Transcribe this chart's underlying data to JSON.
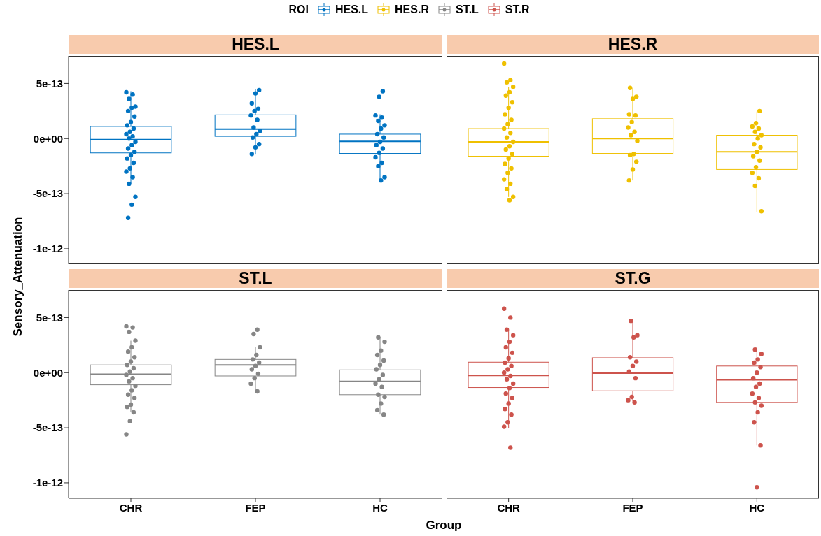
{
  "chart_data": [
    {
      "type": "box",
      "title": "HES.L",
      "legend": "top",
      "legend_title": "ROI",
      "ylabel": "Sensory_Attenuation",
      "categories": [
        "CHR",
        "FEP",
        "HC"
      ],
      "ylim": [
        -1.14e-12,
        7.5e-13
      ],
      "yticks": [
        {
          "value": 5e-13,
          "label": "5e-13"
        },
        {
          "value": 0,
          "label": "0e+00"
        },
        {
          "value": -5e-13,
          "label": "-5e-13"
        },
        {
          "value": -1e-12,
          "label": "-1e-12"
        }
      ],
      "tick_labels": "y",
      "series": [
        {
          "name": "HES.L",
          "color": "#0073c2",
          "boxes": [
            {
              "low": -4.1e-13,
              "q1": -1.3e-13,
              "median": -1e-14,
              "q3": 1.1e-13,
              "high": 4.3e-13
            },
            {
              "low": -1.45e-13,
              "q1": 2e-14,
              "median": 8.5e-14,
              "q3": 2.15e-13,
              "high": 4.5e-13
            },
            {
              "low": -3.8e-13,
              "q1": -1.35e-13,
              "median": -2.5e-14,
              "q3": 4e-14,
              "high": 2.2e-13
            }
          ]
        },
        {
          "type": "scatter",
          "color": "#0073c2",
          "x": [
            "CHR",
            "CHR",
            "CHR",
            "CHR",
            "CHR",
            "CHR",
            "CHR",
            "CHR",
            "CHR",
            "CHR",
            "CHR",
            "CHR",
            "CHR",
            "CHR",
            "CHR",
            "CHR",
            "CHR",
            "CHR",
            "CHR",
            "CHR",
            "CHR",
            "CHR",
            "CHR",
            "CHR",
            "CHR",
            "CHR",
            "CHR",
            "CHR",
            "FEP",
            "FEP",
            "FEP",
            "FEP",
            "FEP",
            "FEP",
            "FEP",
            "FEP",
            "FEP",
            "FEP",
            "FEP",
            "FEP",
            "FEP",
            "FEP",
            "HC",
            "HC",
            "HC",
            "HC",
            "HC",
            "HC",
            "HC",
            "HC",
            "HC",
            "HC",
            "HC",
            "HC",
            "HC",
            "HC",
            "HC",
            "HC",
            "HC",
            "HC"
          ],
          "values": [
            4.2e-13,
            4e-13,
            3.6e-13,
            2.9e-13,
            2.8e-13,
            2.5e-13,
            2e-13,
            1.5e-13,
            1.2e-13,
            9e-14,
            6e-14,
            4e-14,
            2e-14,
            0,
            -3e-14,
            -6e-14,
            -9e-14,
            -1.2e-13,
            -1.5e-13,
            -1.8e-13,
            -2.2e-13,
            -2.7e-13,
            -3e-13,
            -3.5e-13,
            -4.1e-13,
            -5.3e-13,
            -6e-13,
            -7.2e-13,
            4.4e-13,
            4.1e-13,
            3.2e-13,
            2.7e-13,
            2.5e-13,
            2.1e-13,
            1.7e-13,
            1e-13,
            7e-14,
            4e-14,
            1e-14,
            -5e-14,
            -8e-14,
            -1.4e-13,
            4.3e-13,
            3.8e-13,
            2.1e-13,
            1.9e-13,
            1.6e-13,
            1.2e-13,
            9e-14,
            4e-14,
            1e-14,
            -3e-14,
            -6e-14,
            -9e-14,
            -1.3e-13,
            -1.7e-13,
            -2.2e-13,
            -2.5e-13,
            -3.5e-13,
            -3.8e-13
          ]
        }
      ]
    },
    {
      "type": "box",
      "title": "HES.R",
      "categories": [
        "CHR",
        "FEP",
        "HC"
      ],
      "ylim": [
        -1.14e-12,
        7.5e-13
      ],
      "tick_labels": false,
      "series": [
        {
          "name": "HES.R",
          "color": "#efc000",
          "boxes": [
            {
              "low": -5.3e-13,
              "q1": -1.6e-13,
              "median": -3e-14,
              "q3": 9e-14,
              "high": 4.65e-13
            },
            {
              "low": -3.8e-13,
              "q1": -1.35e-13,
              "median": 0,
              "q3": 1.8e-13,
              "high": 4.6e-13
            },
            {
              "low": -6.7e-13,
              "q1": -2.8e-13,
              "median": -1.2e-13,
              "q3": 3e-14,
              "high": 2.45e-13
            }
          ]
        },
        {
          "type": "scatter",
          "color": "#efc000",
          "x": [
            "CHR",
            "CHR",
            "CHR",
            "CHR",
            "CHR",
            "CHR",
            "CHR",
            "CHR",
            "CHR",
            "CHR",
            "CHR",
            "CHR",
            "CHR",
            "CHR",
            "CHR",
            "CHR",
            "CHR",
            "CHR",
            "CHR",
            "CHR",
            "CHR",
            "CHR",
            "CHR",
            "CHR",
            "CHR",
            "CHR",
            "CHR",
            "FEP",
            "FEP",
            "FEP",
            "FEP",
            "FEP",
            "FEP",
            "FEP",
            "FEP",
            "FEP",
            "FEP",
            "FEP",
            "FEP",
            "FEP",
            "FEP",
            "FEP",
            "HC",
            "HC",
            "HC",
            "HC",
            "HC",
            "HC",
            "HC",
            "HC",
            "HC",
            "HC",
            "HC",
            "HC",
            "HC",
            "HC",
            "HC",
            "HC",
            "HC"
          ],
          "values": [
            6.8e-13,
            5.3e-13,
            5.1e-13,
            4.7e-13,
            4.2e-13,
            3.9e-13,
            3.3e-13,
            2.8e-13,
            2.2e-13,
            1.7e-13,
            1.3e-13,
            9e-14,
            5e-14,
            1e-14,
            -3e-14,
            -7e-14,
            -1e-13,
            -1.4e-13,
            -1.8e-13,
            -2.3e-13,
            -2.7e-13,
            -3.1e-13,
            -3.7e-13,
            -4.1e-13,
            -4.6e-13,
            -5.3e-13,
            -5.6e-13,
            4.6e-13,
            3.8e-13,
            3.6e-13,
            2.2e-13,
            2.1e-13,
            1.5e-13,
            1e-13,
            6e-14,
            3e-14,
            -2e-14,
            -1.4e-13,
            -1.5e-13,
            -2.1e-13,
            -2.8e-13,
            -3.8e-13,
            2.5e-13,
            1.4e-13,
            1.1e-13,
            9e-14,
            6e-14,
            3e-14,
            0,
            -5e-14,
            -8e-14,
            -1.2e-13,
            -1.6e-13,
            -2e-13,
            -2.6e-13,
            -3.1e-13,
            -3.6e-13,
            -4.3e-13,
            -6.6e-13
          ]
        }
      ]
    },
    {
      "type": "box",
      "title": "ST.L",
      "xlabel": "Group",
      "categories": [
        "CHR",
        "FEP",
        "HC"
      ],
      "ylim": [
        -1.14e-12,
        7.5e-13
      ],
      "yticks": [
        {
          "value": 5e-13,
          "label": "5e-13"
        },
        {
          "value": 0,
          "label": "0e+00"
        },
        {
          "value": -5e-13,
          "label": "-5e-13"
        },
        {
          "value": -1e-12,
          "label": "-1e-12"
        }
      ],
      "series": [
        {
          "name": "ST.L",
          "color": "#868686",
          "boxes": [
            {
              "low": -3.6e-13,
              "q1": -1.1e-13,
              "median": -1.5e-14,
              "q3": 7e-14,
              "high": 2.9e-13
            },
            {
              "low": -1.8e-13,
              "q1": -3e-14,
              "median": 7e-14,
              "q3": 1.2e-13,
              "high": 2.3e-13
            },
            {
              "low": -3.8e-13,
              "q1": -2e-13,
              "median": -8e-14,
              "q3": 2.5e-14,
              "high": 3.25e-13
            }
          ]
        },
        {
          "type": "scatter",
          "color": "#868686",
          "x": [
            "CHR",
            "CHR",
            "CHR",
            "CHR",
            "CHR",
            "CHR",
            "CHR",
            "CHR",
            "CHR",
            "CHR",
            "CHR",
            "CHR",
            "CHR",
            "CHR",
            "CHR",
            "CHR",
            "CHR",
            "CHR",
            "CHR",
            "CHR",
            "CHR",
            "CHR",
            "CHR",
            "FEP",
            "FEP",
            "FEP",
            "FEP",
            "FEP",
            "FEP",
            "FEP",
            "FEP",
            "FEP",
            "FEP",
            "FEP",
            "FEP",
            "HC",
            "HC",
            "HC",
            "HC",
            "HC",
            "HC",
            "HC",
            "HC",
            "HC",
            "HC",
            "HC",
            "HC",
            "HC",
            "HC",
            "HC",
            "HC"
          ],
          "values": [
            4.2e-13,
            4.1e-13,
            3.7e-13,
            2.9e-13,
            2.3e-13,
            1.9e-13,
            1.4e-13,
            1e-13,
            7e-14,
            4e-14,
            1e-14,
            -2e-14,
            -5e-14,
            -8e-14,
            -1.2e-13,
            -1.6e-13,
            -2e-13,
            -2.3e-13,
            -2.9e-13,
            -3.1e-13,
            -3.6e-13,
            -4.4e-13,
            -5.6e-13,
            3.9e-13,
            3.5e-13,
            2.3e-13,
            1.6e-13,
            1.2e-13,
            9e-14,
            6e-14,
            3e-14,
            -1e-14,
            -5e-14,
            -1e-13,
            -1.7e-13,
            3.2e-13,
            2.8e-13,
            2e-13,
            1.6e-13,
            1.1e-13,
            7e-14,
            3e-14,
            -2e-14,
            -6e-14,
            -1e-13,
            -1.3e-13,
            -2e-13,
            -2.2e-13,
            -2.8e-13,
            -3.4e-13,
            -3.8e-13
          ]
        }
      ]
    },
    {
      "type": "box",
      "title": "ST.G",
      "categories": [
        "CHR",
        "FEP",
        "HC"
      ],
      "ylim": [
        -1.14e-12,
        7.5e-13
      ],
      "tick_labels": "x",
      "series": [
        {
          "name": "ST.R",
          "color": "#cd534c",
          "boxes": [
            {
              "low": -5e-13,
              "q1": -1.35e-13,
              "median": -2.5e-14,
              "q3": 9.5e-14,
              "high": 3.9e-13
            },
            {
              "low": -2.6e-13,
              "q1": -1.65e-13,
              "median": -5e-15,
              "q3": 1.35e-13,
              "high": 4.8e-13
            },
            {
              "low": -6.6e-13,
              "q1": -2.7e-13,
              "median": -6.5e-14,
              "q3": 6e-14,
              "high": 2.3e-13
            }
          ]
        },
        {
          "type": "scatter",
          "color": "#cd534c",
          "x": [
            "CHR",
            "CHR",
            "CHR",
            "CHR",
            "CHR",
            "CHR",
            "CHR",
            "CHR",
            "CHR",
            "CHR",
            "CHR",
            "CHR",
            "CHR",
            "CHR",
            "CHR",
            "CHR",
            "CHR",
            "CHR",
            "CHR",
            "CHR",
            "CHR",
            "CHR",
            "CHR",
            "CHR",
            "FEP",
            "FEP",
            "FEP",
            "FEP",
            "FEP",
            "FEP",
            "FEP",
            "FEP",
            "FEP",
            "FEP",
            "FEP",
            "HC",
            "HC",
            "HC",
            "HC",
            "HC",
            "HC",
            "HC",
            "HC",
            "HC",
            "HC",
            "HC",
            "HC",
            "HC",
            "HC",
            "HC",
            "HC",
            "HC"
          ],
          "values": [
            5.8e-13,
            5e-13,
            3.9e-13,
            3.4e-13,
            2.8e-13,
            2.3e-13,
            1.8e-13,
            1.3e-13,
            9e-14,
            6e-14,
            3e-14,
            0,
            -3e-14,
            -6e-14,
            -1e-13,
            -1.4e-13,
            -1.9e-13,
            -2.3e-13,
            -2.8e-13,
            -3.3e-13,
            -3.8e-13,
            -4.5e-13,
            -4.9e-13,
            -6.8e-13,
            4.7e-13,
            3.4e-13,
            3.2e-13,
            1.4e-13,
            1e-13,
            6e-14,
            1e-14,
            -5e-14,
            -2.2e-13,
            -2.5e-13,
            -2.7e-13,
            2.1e-13,
            1.7e-13,
            1.2e-13,
            9e-14,
            5e-14,
            0,
            -5e-14,
            -1e-13,
            -1.3e-13,
            -1.9e-13,
            -2.3e-13,
            -2.7e-13,
            -3e-13,
            -3.6e-13,
            -4.5e-13,
            -6.6e-13,
            -1.04e-12
          ]
        }
      ]
    }
  ]
}
